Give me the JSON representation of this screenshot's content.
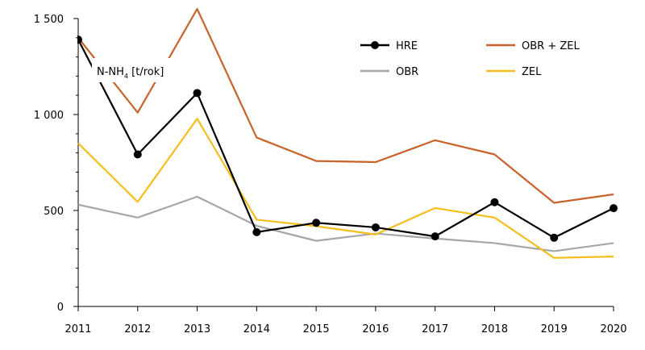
{
  "chart_data": {
    "type": "line",
    "ylabel": "N-NH",
    "ylabel_sub": "4",
    "ylabel_unit": "[t/rok]",
    "ylim": [
      0,
      1500
    ],
    "yticks": [
      {
        "value": 0,
        "label": "0"
      },
      {
        "value": 500,
        "label": "500"
      },
      {
        "value": 1000,
        "label": "1 000"
      },
      {
        "value": 1500,
        "label": "1 500"
      }
    ],
    "categories": [
      "2011",
      "2012",
      "2013",
      "2014",
      "2015",
      "2016",
      "2017",
      "2018",
      "2019",
      "2020"
    ],
    "grid": false,
    "legend_position": "top-right",
    "series": [
      {
        "name": "HRE",
        "color": "#000000",
        "marker": "circle",
        "values": [
          1390,
          792,
          1112,
          387,
          436,
          412,
          365,
          543,
          358,
          512
        ]
      },
      {
        "name": "OBR + ZEL",
        "color": "#C8622A",
        "marker": "none",
        "values": [
          1400,
          1010,
          1550,
          880,
          758,
          752,
          866,
          792,
          540,
          584
        ]
      },
      {
        "name": "OBR",
        "color": "#A6A6A6",
        "marker": "none",
        "values": [
          530,
          463,
          572,
          420,
          342,
          380,
          354,
          330,
          288,
          330
        ]
      },
      {
        "name": "ZEL",
        "color": "#F5BE1C",
        "marker": "none",
        "values": [
          850,
          545,
          978,
          452,
          418,
          375,
          513,
          463,
          253,
          260
        ]
      }
    ]
  }
}
